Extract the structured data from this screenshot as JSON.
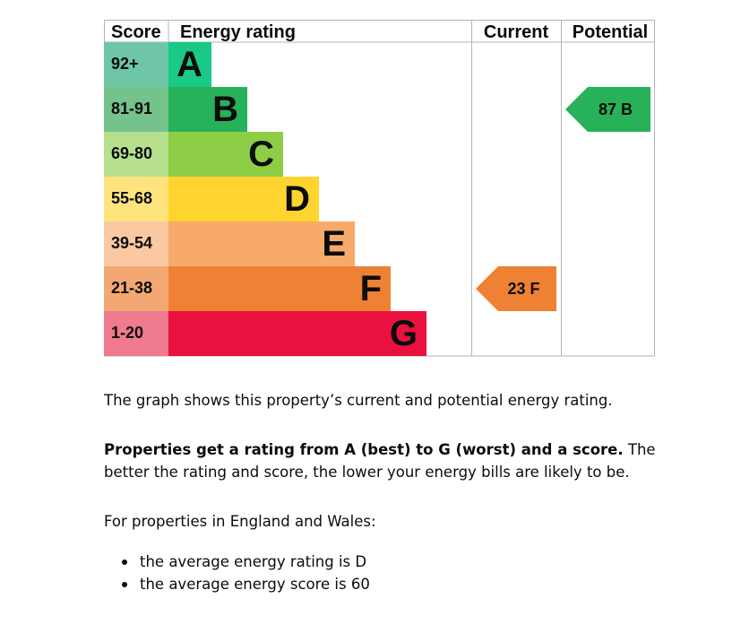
{
  "chart_data": {
    "type": "table",
    "headers": {
      "score": "Score",
      "rating": "Energy rating",
      "current": "Current",
      "potential": "Potential"
    },
    "bands": [
      {
        "score": "92+",
        "letter": "A",
        "color": "#19c985",
        "score_color": "#6fc6a6"
      },
      {
        "score": "81-91",
        "letter": "B",
        "color": "#27b159",
        "score_color": "#76c28c"
      },
      {
        "score": "69-80",
        "letter": "C",
        "color": "#8dce46",
        "score_color": "#b6df8e"
      },
      {
        "score": "55-68",
        "letter": "D",
        "color": "#ffd42f",
        "score_color": "#ffe47e"
      },
      {
        "score": "39-54",
        "letter": "E",
        "color": "#f8aa6a",
        "score_color": "#fbc9a1"
      },
      {
        "score": "21-38",
        "letter": "F",
        "color": "#ef8134",
        "score_color": "#f3a873"
      },
      {
        "score": "1-20",
        "letter": "G",
        "color": "#e9113d",
        "score_color": "#f07a8e"
      }
    ],
    "current": {
      "score": "23",
      "letter": "F",
      "color": "#ef8134"
    },
    "potential": {
      "score": "87",
      "letter": "B",
      "color": "#27b159"
    }
  },
  "text": {
    "intro": "The graph shows this property’s current and potential energy rating.",
    "rating_bold": "Properties get a rating from A (best) to G (worst) and a score.",
    "rating_rest": " The better the rating and score, the lower your energy bills are likely to be.",
    "region": "For properties in England and Wales:",
    "bullets": [
      "the average energy rating is D",
      "the average energy score is 60"
    ]
  }
}
